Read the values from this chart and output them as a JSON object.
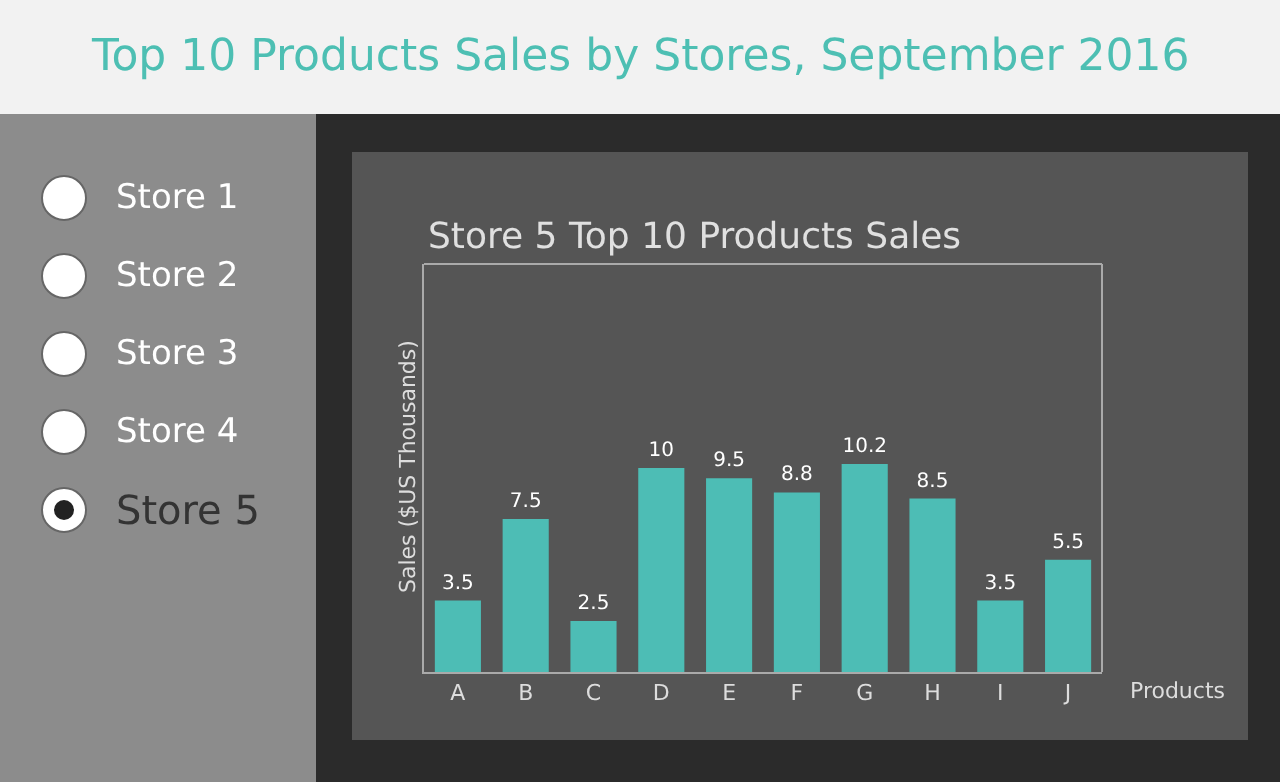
{
  "chart_data": {
    "type": "bar",
    "title": "Top 10 Products Sales by Stores, September 2016",
    "subtitle": "Store 5 Top 10 Products Sales",
    "xlabel": "Products",
    "ylabel": "Sales ($US Thousands)",
    "categories": [
      "A",
      "B",
      "C",
      "D",
      "E",
      "F",
      "G",
      "H",
      "I",
      "J"
    ],
    "values": [
      3.5,
      7.5,
      2.5,
      10,
      9.5,
      8.8,
      10.2,
      8.5,
      3.5,
      5.5
    ],
    "color": "#4dbdb5",
    "ylim": [
      0,
      20
    ],
    "data_labels": true,
    "grid": false,
    "legend": false,
    "tick_labels": "x",
    "annotations": [
      "Store 1",
      "Store 2",
      "Store 3",
      "Store 4",
      "Store 5"
    ]
  }
}
